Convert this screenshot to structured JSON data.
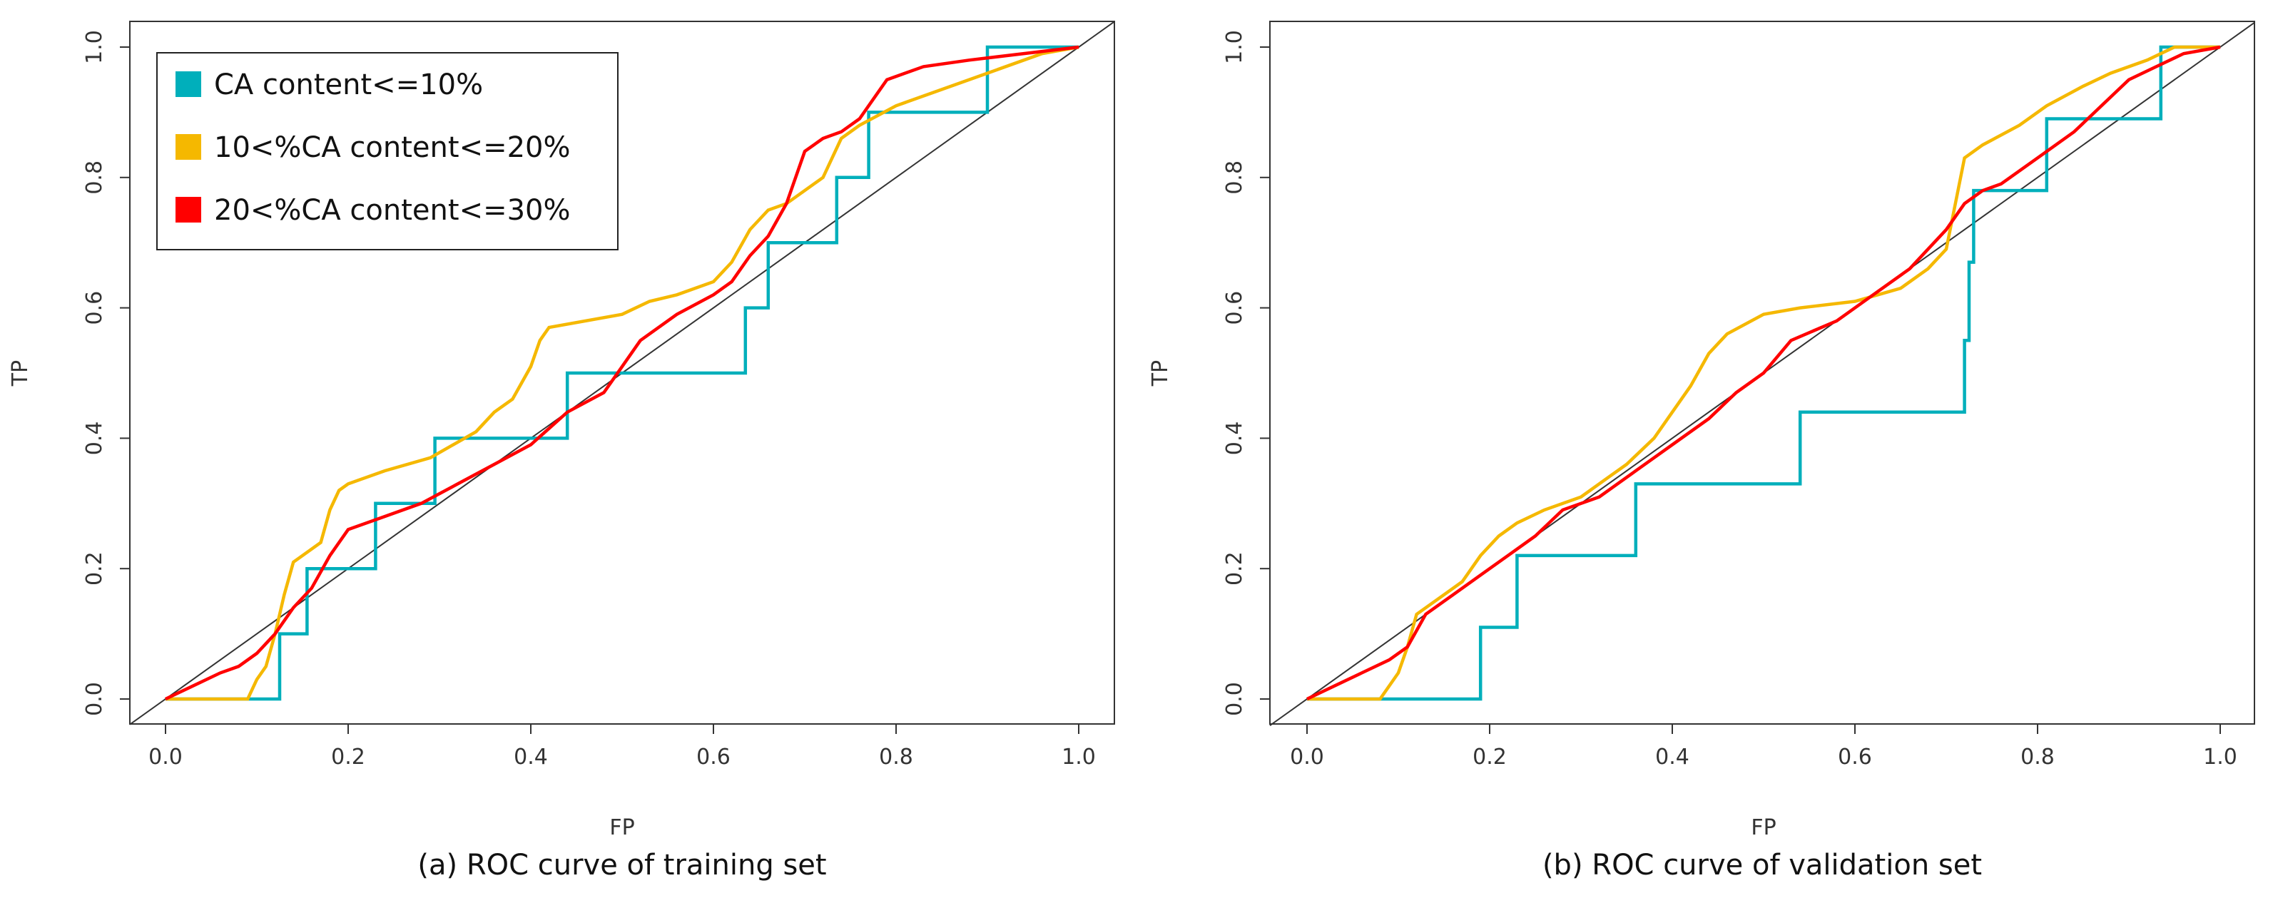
{
  "colors": {
    "ca_le_10": "#00AFBB",
    "ca_10_20": "#F5B800",
    "ca_20_30": "#FF0000",
    "diagonal": "#333333",
    "frame": "#333333"
  },
  "legend": [
    {
      "key": "ca_le_10",
      "label": "CA content<=10%"
    },
    {
      "key": "ca_10_20",
      "label": "10<%CA content<=20%"
    },
    {
      "key": "ca_20_30",
      "label": "20<%CA content<=30%"
    }
  ],
  "chart_data": [
    {
      "type": "line",
      "title": "(a) ROC curve of training set",
      "xlabel": "FP",
      "ylabel": "TP",
      "xlim": [
        0,
        1
      ],
      "ylim": [
        0,
        1
      ],
      "xticks": [
        "0.0",
        "0.2",
        "0.4",
        "0.6",
        "0.8",
        "1.0"
      ],
      "yticks": [
        "0.0",
        "0.2",
        "0.4",
        "0.6",
        "0.8",
        "1.0"
      ],
      "legend_position": "top-left",
      "reference_line": "diagonal",
      "series": [
        {
          "name": "CA content<=10%",
          "key": "ca_le_10",
          "x": [
            0,
            0.125,
            0.125,
            0.155,
            0.155,
            0.23,
            0.23,
            0.295,
            0.295,
            0.44,
            0.44,
            0.635,
            0.635,
            0.66,
            0.66,
            0.735,
            0.735,
            0.77,
            0.77,
            0.9,
            0.9,
            1
          ],
          "y": [
            0,
            0,
            0.1,
            0.1,
            0.2,
            0.2,
            0.3,
            0.3,
            0.4,
            0.4,
            0.5,
            0.5,
            0.6,
            0.6,
            0.7,
            0.7,
            0.8,
            0.8,
            0.9,
            0.9,
            1,
            1
          ]
        },
        {
          "name": "10<%CA content<=20%",
          "key": "ca_10_20",
          "x": [
            0,
            0.09,
            0.1,
            0.11,
            0.12,
            0.13,
            0.14,
            0.17,
            0.18,
            0.19,
            0.2,
            0.24,
            0.29,
            0.34,
            0.36,
            0.38,
            0.4,
            0.41,
            0.42,
            0.5,
            0.53,
            0.56,
            0.6,
            0.62,
            0.64,
            0.66,
            0.68,
            0.72,
            0.74,
            0.76,
            0.8,
            0.84,
            0.9,
            0.96,
            1
          ],
          "y": [
            0,
            0,
            0.03,
            0.05,
            0.1,
            0.16,
            0.21,
            0.24,
            0.29,
            0.32,
            0.33,
            0.35,
            0.37,
            0.41,
            0.44,
            0.46,
            0.51,
            0.55,
            0.57,
            0.59,
            0.61,
            0.62,
            0.64,
            0.67,
            0.72,
            0.75,
            0.76,
            0.8,
            0.86,
            0.88,
            0.91,
            0.93,
            0.96,
            0.99,
            1
          ]
        },
        {
          "name": "20<%CA content<=30%",
          "key": "ca_20_30",
          "x": [
            0,
            0.03,
            0.06,
            0.08,
            0.1,
            0.12,
            0.14,
            0.16,
            0.18,
            0.2,
            0.24,
            0.28,
            0.32,
            0.36,
            0.4,
            0.44,
            0.48,
            0.5,
            0.52,
            0.56,
            0.6,
            0.62,
            0.64,
            0.66,
            0.68,
            0.7,
            0.72,
            0.74,
            0.76,
            0.79,
            0.83,
            0.88,
            0.94,
            1
          ],
          "y": [
            0,
            0.02,
            0.04,
            0.05,
            0.07,
            0.1,
            0.14,
            0.17,
            0.22,
            0.26,
            0.28,
            0.3,
            0.33,
            0.36,
            0.39,
            0.44,
            0.47,
            0.51,
            0.55,
            0.59,
            0.62,
            0.64,
            0.68,
            0.71,
            0.76,
            0.84,
            0.86,
            0.87,
            0.89,
            0.95,
            0.97,
            0.98,
            0.99,
            1
          ]
        }
      ]
    },
    {
      "type": "line",
      "title": "(b) ROC curve of validation set",
      "xlabel": "FP",
      "ylabel": "TP",
      "xlim": [
        0,
        1
      ],
      "ylim": [
        0,
        1
      ],
      "xticks": [
        "0.0",
        "0.2",
        "0.4",
        "0.6",
        "0.8",
        "1.0"
      ],
      "yticks": [
        "0.0",
        "0.2",
        "0.4",
        "0.6",
        "0.8",
        "1.0"
      ],
      "reference_line": "diagonal",
      "series": [
        {
          "name": "CA content<=10%",
          "key": "ca_le_10",
          "x": [
            0,
            0.08,
            0.19,
            0.19,
            0.23,
            0.23,
            0.36,
            0.36,
            0.54,
            0.54,
            0.72,
            0.72,
            0.725,
            0.725,
            0.73,
            0.73,
            0.81,
            0.81,
            0.935,
            0.935,
            1
          ],
          "y": [
            0,
            0,
            0,
            0.11,
            0.11,
            0.22,
            0.22,
            0.33,
            0.33,
            0.44,
            0.44,
            0.55,
            0.55,
            0.67,
            0.67,
            0.78,
            0.78,
            0.89,
            0.89,
            1,
            1
          ]
        },
        {
          "name": "10<%CA content<=20%",
          "key": "ca_10_20",
          "x": [
            0,
            0.08,
            0.1,
            0.11,
            0.12,
            0.15,
            0.17,
            0.19,
            0.21,
            0.23,
            0.26,
            0.3,
            0.33,
            0.35,
            0.38,
            0.4,
            0.42,
            0.44,
            0.46,
            0.5,
            0.54,
            0.6,
            0.65,
            0.68,
            0.7,
            0.71,
            0.72,
            0.74,
            0.78,
            0.81,
            0.85,
            0.88,
            0.92,
            0.95,
            1
          ],
          "y": [
            0,
            0,
            0.04,
            0.08,
            0.13,
            0.16,
            0.18,
            0.22,
            0.25,
            0.27,
            0.29,
            0.31,
            0.34,
            0.36,
            0.4,
            0.44,
            0.48,
            0.53,
            0.56,
            0.59,
            0.6,
            0.61,
            0.63,
            0.66,
            0.69,
            0.76,
            0.83,
            0.85,
            0.88,
            0.91,
            0.94,
            0.96,
            0.98,
            1,
            1
          ]
        },
        {
          "name": "20<%CA content<=30%",
          "key": "ca_20_30",
          "x": [
            0,
            0.03,
            0.06,
            0.09,
            0.11,
            0.13,
            0.16,
            0.19,
            0.22,
            0.25,
            0.28,
            0.32,
            0.36,
            0.4,
            0.44,
            0.47,
            0.5,
            0.53,
            0.58,
            0.62,
            0.66,
            0.7,
            0.72,
            0.74,
            0.76,
            0.8,
            0.84,
            0.87,
            0.9,
            0.93,
            0.96,
            1
          ],
          "y": [
            0,
            0.02,
            0.04,
            0.06,
            0.08,
            0.13,
            0.16,
            0.19,
            0.22,
            0.25,
            0.29,
            0.31,
            0.35,
            0.39,
            0.43,
            0.47,
            0.5,
            0.55,
            0.58,
            0.62,
            0.66,
            0.72,
            0.76,
            0.78,
            0.79,
            0.83,
            0.87,
            0.91,
            0.95,
            0.97,
            0.99,
            1
          ]
        }
      ]
    }
  ]
}
